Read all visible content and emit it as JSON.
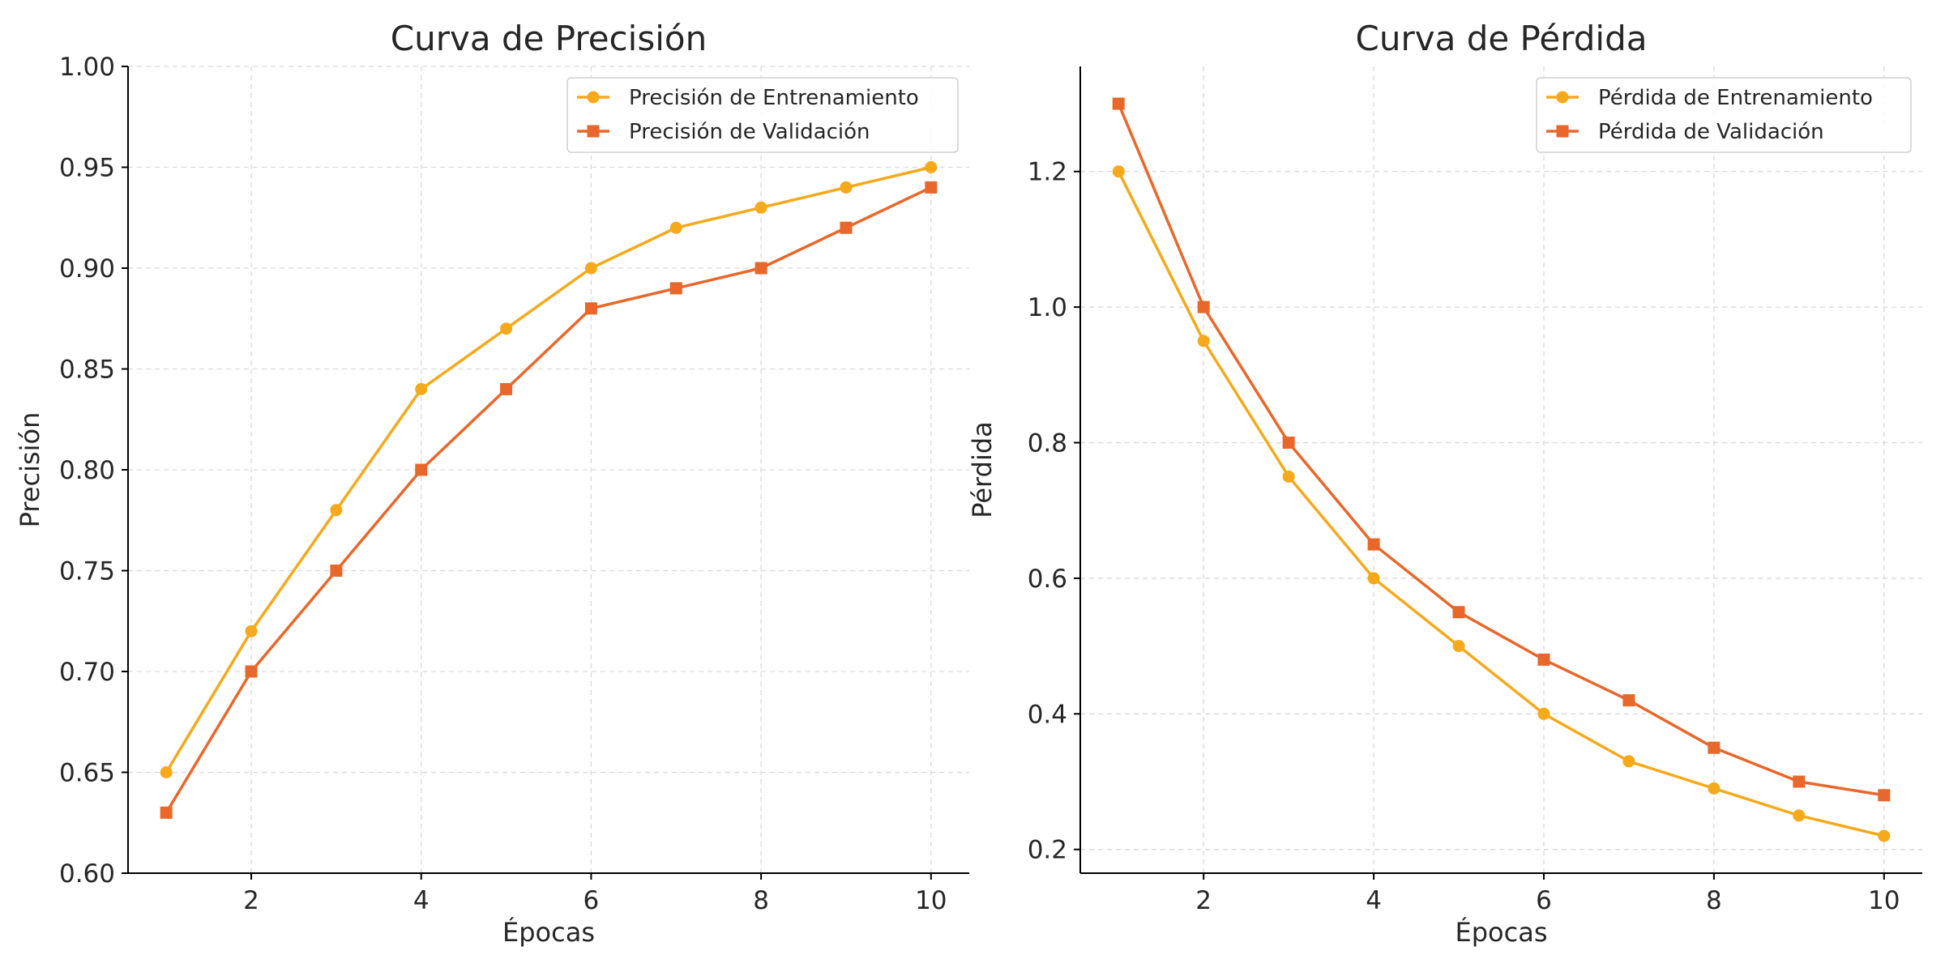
{
  "colors": {
    "train": "#F5A91B",
    "validation": "#E8672A"
  },
  "chart_data": [
    {
      "type": "line",
      "title": "Curva de Precisión",
      "xlabel": "Épocas",
      "ylabel": "Precisión",
      "x": [
        1,
        2,
        3,
        4,
        5,
        6,
        7,
        8,
        9,
        10
      ],
      "xlim": [
        0.55,
        10.45
      ],
      "ylim": [
        0.6,
        1.0
      ],
      "xticks": [
        2,
        4,
        6,
        8,
        10
      ],
      "xtick_labels": [
        "2",
        "4",
        "6",
        "8",
        "10"
      ],
      "yticks": [
        0.6,
        0.65,
        0.7,
        0.75,
        0.8,
        0.85,
        0.9,
        0.95,
        1.0
      ],
      "ytick_labels": [
        "0.60",
        "0.65",
        "0.70",
        "0.75",
        "0.80",
        "0.85",
        "0.90",
        "0.95",
        "1.00"
      ],
      "grid": true,
      "legend_position": "top-right",
      "series": [
        {
          "name": "Precisión de Entrenamiento",
          "marker": "circle",
          "color": "#F5A91B",
          "values": [
            0.65,
            0.72,
            0.78,
            0.84,
            0.87,
            0.9,
            0.92,
            0.93,
            0.94,
            0.95
          ]
        },
        {
          "name": "Precisión de Validación",
          "marker": "square",
          "color": "#E8672A",
          "values": [
            0.63,
            0.7,
            0.75,
            0.8,
            0.84,
            0.88,
            0.89,
            0.9,
            0.92,
            0.94
          ]
        }
      ]
    },
    {
      "type": "line",
      "title": "Curva de Pérdida",
      "xlabel": "Épocas",
      "ylabel": "Pérdida",
      "x": [
        1,
        2,
        3,
        4,
        5,
        6,
        7,
        8,
        9,
        10
      ],
      "xlim": [
        0.55,
        10.45
      ],
      "ylim": [
        0.165,
        1.355
      ],
      "xticks": [
        2,
        4,
        6,
        8,
        10
      ],
      "xtick_labels": [
        "2",
        "4",
        "6",
        "8",
        "10"
      ],
      "yticks": [
        0.2,
        0.4,
        0.6,
        0.8,
        1.0,
        1.2
      ],
      "ytick_labels": [
        "0.2",
        "0.4",
        "0.6",
        "0.8",
        "1.0",
        "1.2"
      ],
      "grid": true,
      "legend_position": "top-right",
      "series": [
        {
          "name": "Pérdida de Entrenamiento",
          "marker": "circle",
          "color": "#F5A91B",
          "values": [
            1.2,
            0.95,
            0.75,
            0.6,
            0.5,
            0.4,
            0.33,
            0.29,
            0.25,
            0.22
          ]
        },
        {
          "name": "Pérdida de Validación",
          "marker": "square",
          "color": "#E8672A",
          "values": [
            1.3,
            1.0,
            0.8,
            0.65,
            0.55,
            0.48,
            0.42,
            0.35,
            0.3,
            0.28
          ]
        }
      ]
    }
  ]
}
